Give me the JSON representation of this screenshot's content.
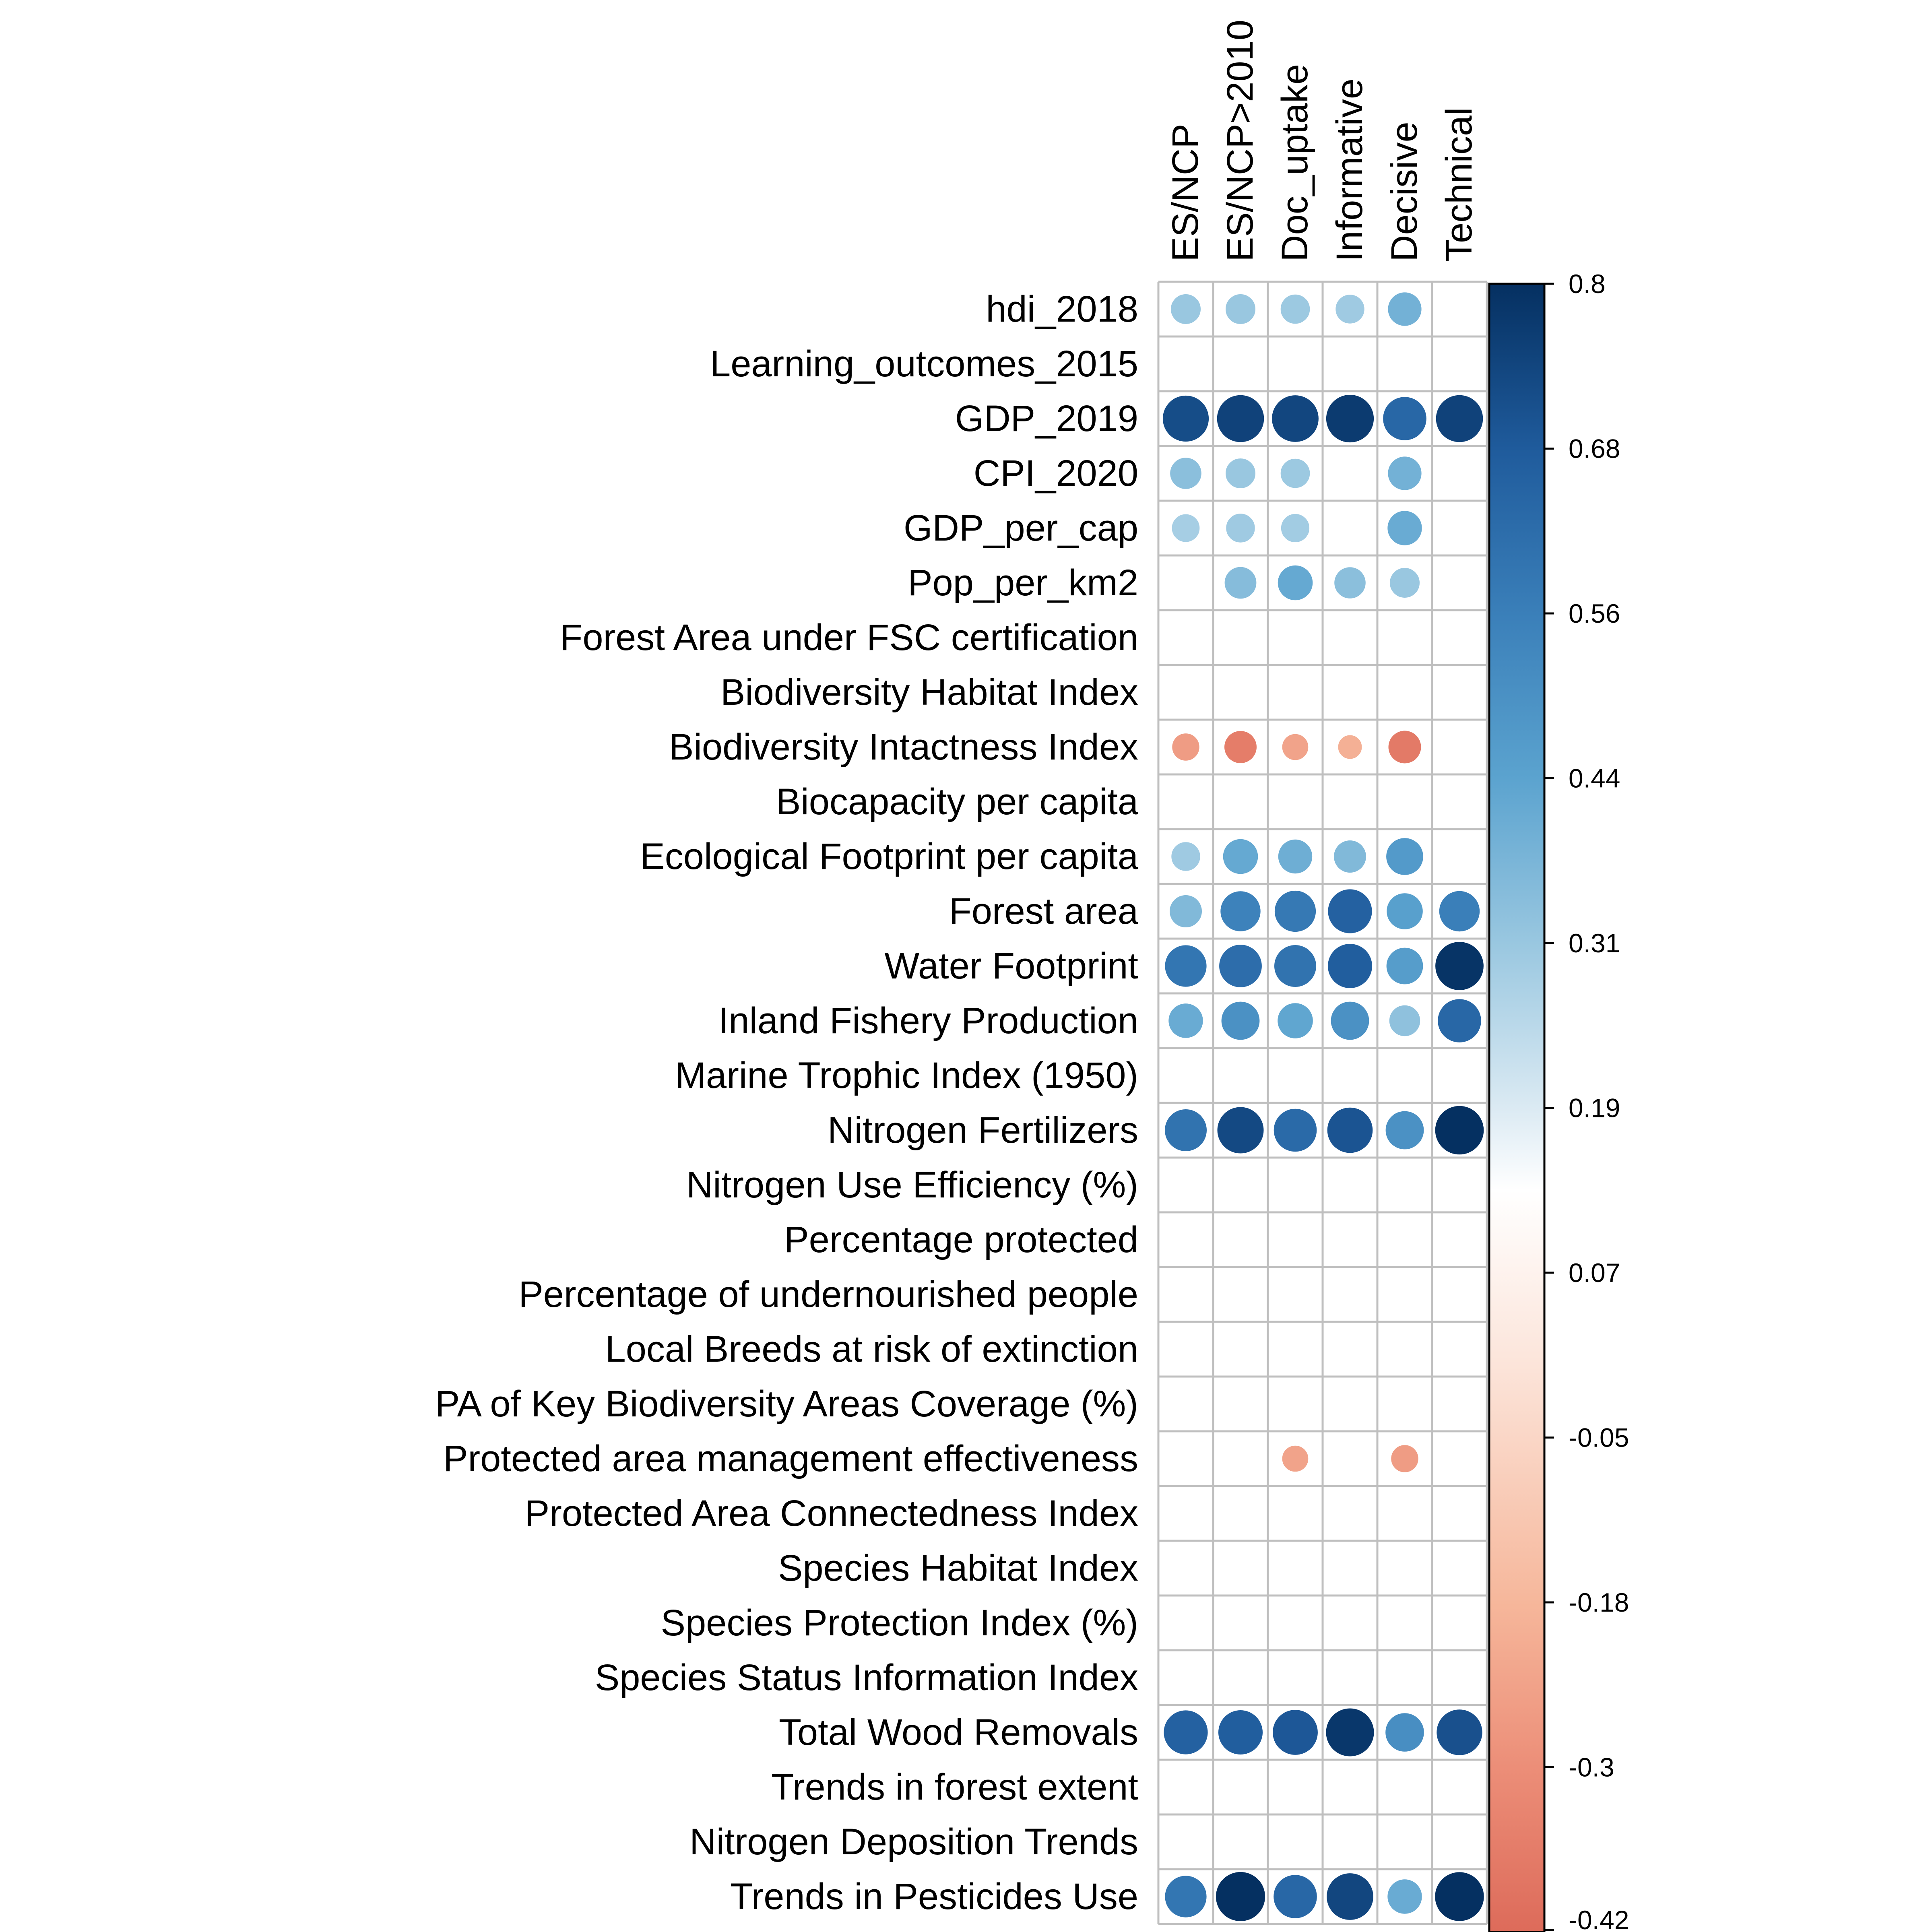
{
  "chart_data": {
    "type": "heatmap",
    "title": "",
    "columns": [
      "ES/NCP",
      "ES/NCP>2010",
      "Doc_uptake",
      "Informative",
      "Decisive",
      "Technical"
    ],
    "rows": [
      "hdi_2018",
      "Learning_outcomes_2015",
      "GDP_2019",
      "CPI_2020",
      "GDP_per_cap",
      "Pop_per_km2",
      "Forest Area under FSC certification",
      "Biodiversity Habitat Index",
      "Biodiversity Intactness Index",
      "Biocapacity per capita",
      "Ecological Footprint per capita",
      "Forest area",
      "Water Footprint",
      "Inland Fishery Production",
      "Marine Trophic Index (1950)",
      "Nitrogen Fertilizers",
      "Nitrogen Use Efficiency (%)",
      "Percentage protected",
      "Percentage of undernourished people",
      "Local Breeds at risk of extinction",
      "PA of Key Biodiversity Areas Coverage (%)",
      "Protected area management effectiveness",
      "Protected Area Connectedness Index",
      "Species Habitat Index",
      "Species Protection Index (%)",
      "Species Status Information Index",
      "Total Wood Removals",
      "Trends in forest extent",
      "Nitrogen Deposition Trends",
      "Trends in Pesticides Use"
    ],
    "values": [
      [
        0.31,
        0.31,
        0.3,
        0.29,
        0.39,
        null
      ],
      [
        null,
        null,
        null,
        null,
        null,
        null
      ],
      [
        0.72,
        0.75,
        0.74,
        0.77,
        0.64,
        0.75
      ],
      [
        0.34,
        0.31,
        0.3,
        null,
        0.39,
        null
      ],
      [
        0.27,
        0.29,
        0.28,
        null,
        0.41,
        null
      ],
      [
        null,
        0.35,
        0.42,
        0.34,
        0.31,
        null
      ],
      [
        null,
        null,
        null,
        null,
        null,
        null
      ],
      [
        null,
        null,
        null,
        null,
        null,
        null
      ],
      [
        -0.26,
        -0.36,
        -0.24,
        -0.2,
        -0.37,
        null
      ],
      [
        null,
        null,
        null,
        null,
        null,
        null
      ],
      [
        0.29,
        0.42,
        0.4,
        0.36,
        0.47,
        null
      ],
      [
        0.36,
        0.55,
        0.58,
        0.66,
        0.45,
        0.56
      ],
      [
        0.59,
        0.62,
        0.6,
        0.67,
        0.46,
        0.79
      ],
      [
        0.41,
        0.5,
        0.43,
        0.5,
        0.33,
        0.64
      ],
      [
        null,
        null,
        null,
        null,
        null,
        null
      ],
      [
        0.6,
        0.73,
        0.63,
        0.7,
        0.5,
        0.8
      ],
      [
        null,
        null,
        null,
        null,
        null,
        null
      ],
      [
        null,
        null,
        null,
        null,
        null,
        null
      ],
      [
        null,
        null,
        null,
        null,
        null,
        null
      ],
      [
        null,
        null,
        null,
        null,
        null,
        null
      ],
      [
        null,
        null,
        null,
        null,
        null,
        null
      ],
      [
        null,
        null,
        -0.24,
        null,
        -0.26,
        null
      ],
      [
        null,
        null,
        null,
        null,
        null,
        null
      ],
      [
        null,
        null,
        null,
        null,
        null,
        null
      ],
      [
        null,
        null,
        null,
        null,
        null,
        null
      ],
      [
        null,
        null,
        null,
        null,
        null,
        null
      ],
      [
        0.66,
        0.67,
        0.69,
        0.78,
        0.51,
        0.71
      ],
      [
        null,
        null,
        null,
        null,
        null,
        null
      ],
      [
        null,
        null,
        null,
        null,
        null,
        null
      ],
      [
        0.59,
        0.82,
        0.64,
        0.74,
        0.41,
        0.81
      ]
    ],
    "colorbar": {
      "min": -0.42,
      "max": 0.8,
      "ticks": [
        "0.8",
        "0.68",
        "0.56",
        "0.44",
        "0.31",
        "0.19",
        "0.07",
        "-0.05",
        "-0.18",
        "-0.3",
        "-0.42"
      ]
    },
    "colors": {
      "negative_end": "#dd6b5a",
      "mid": "#ffffff",
      "positive_end": "#053061",
      "grid": "#bfbfbf"
    },
    "legend": "right"
  }
}
